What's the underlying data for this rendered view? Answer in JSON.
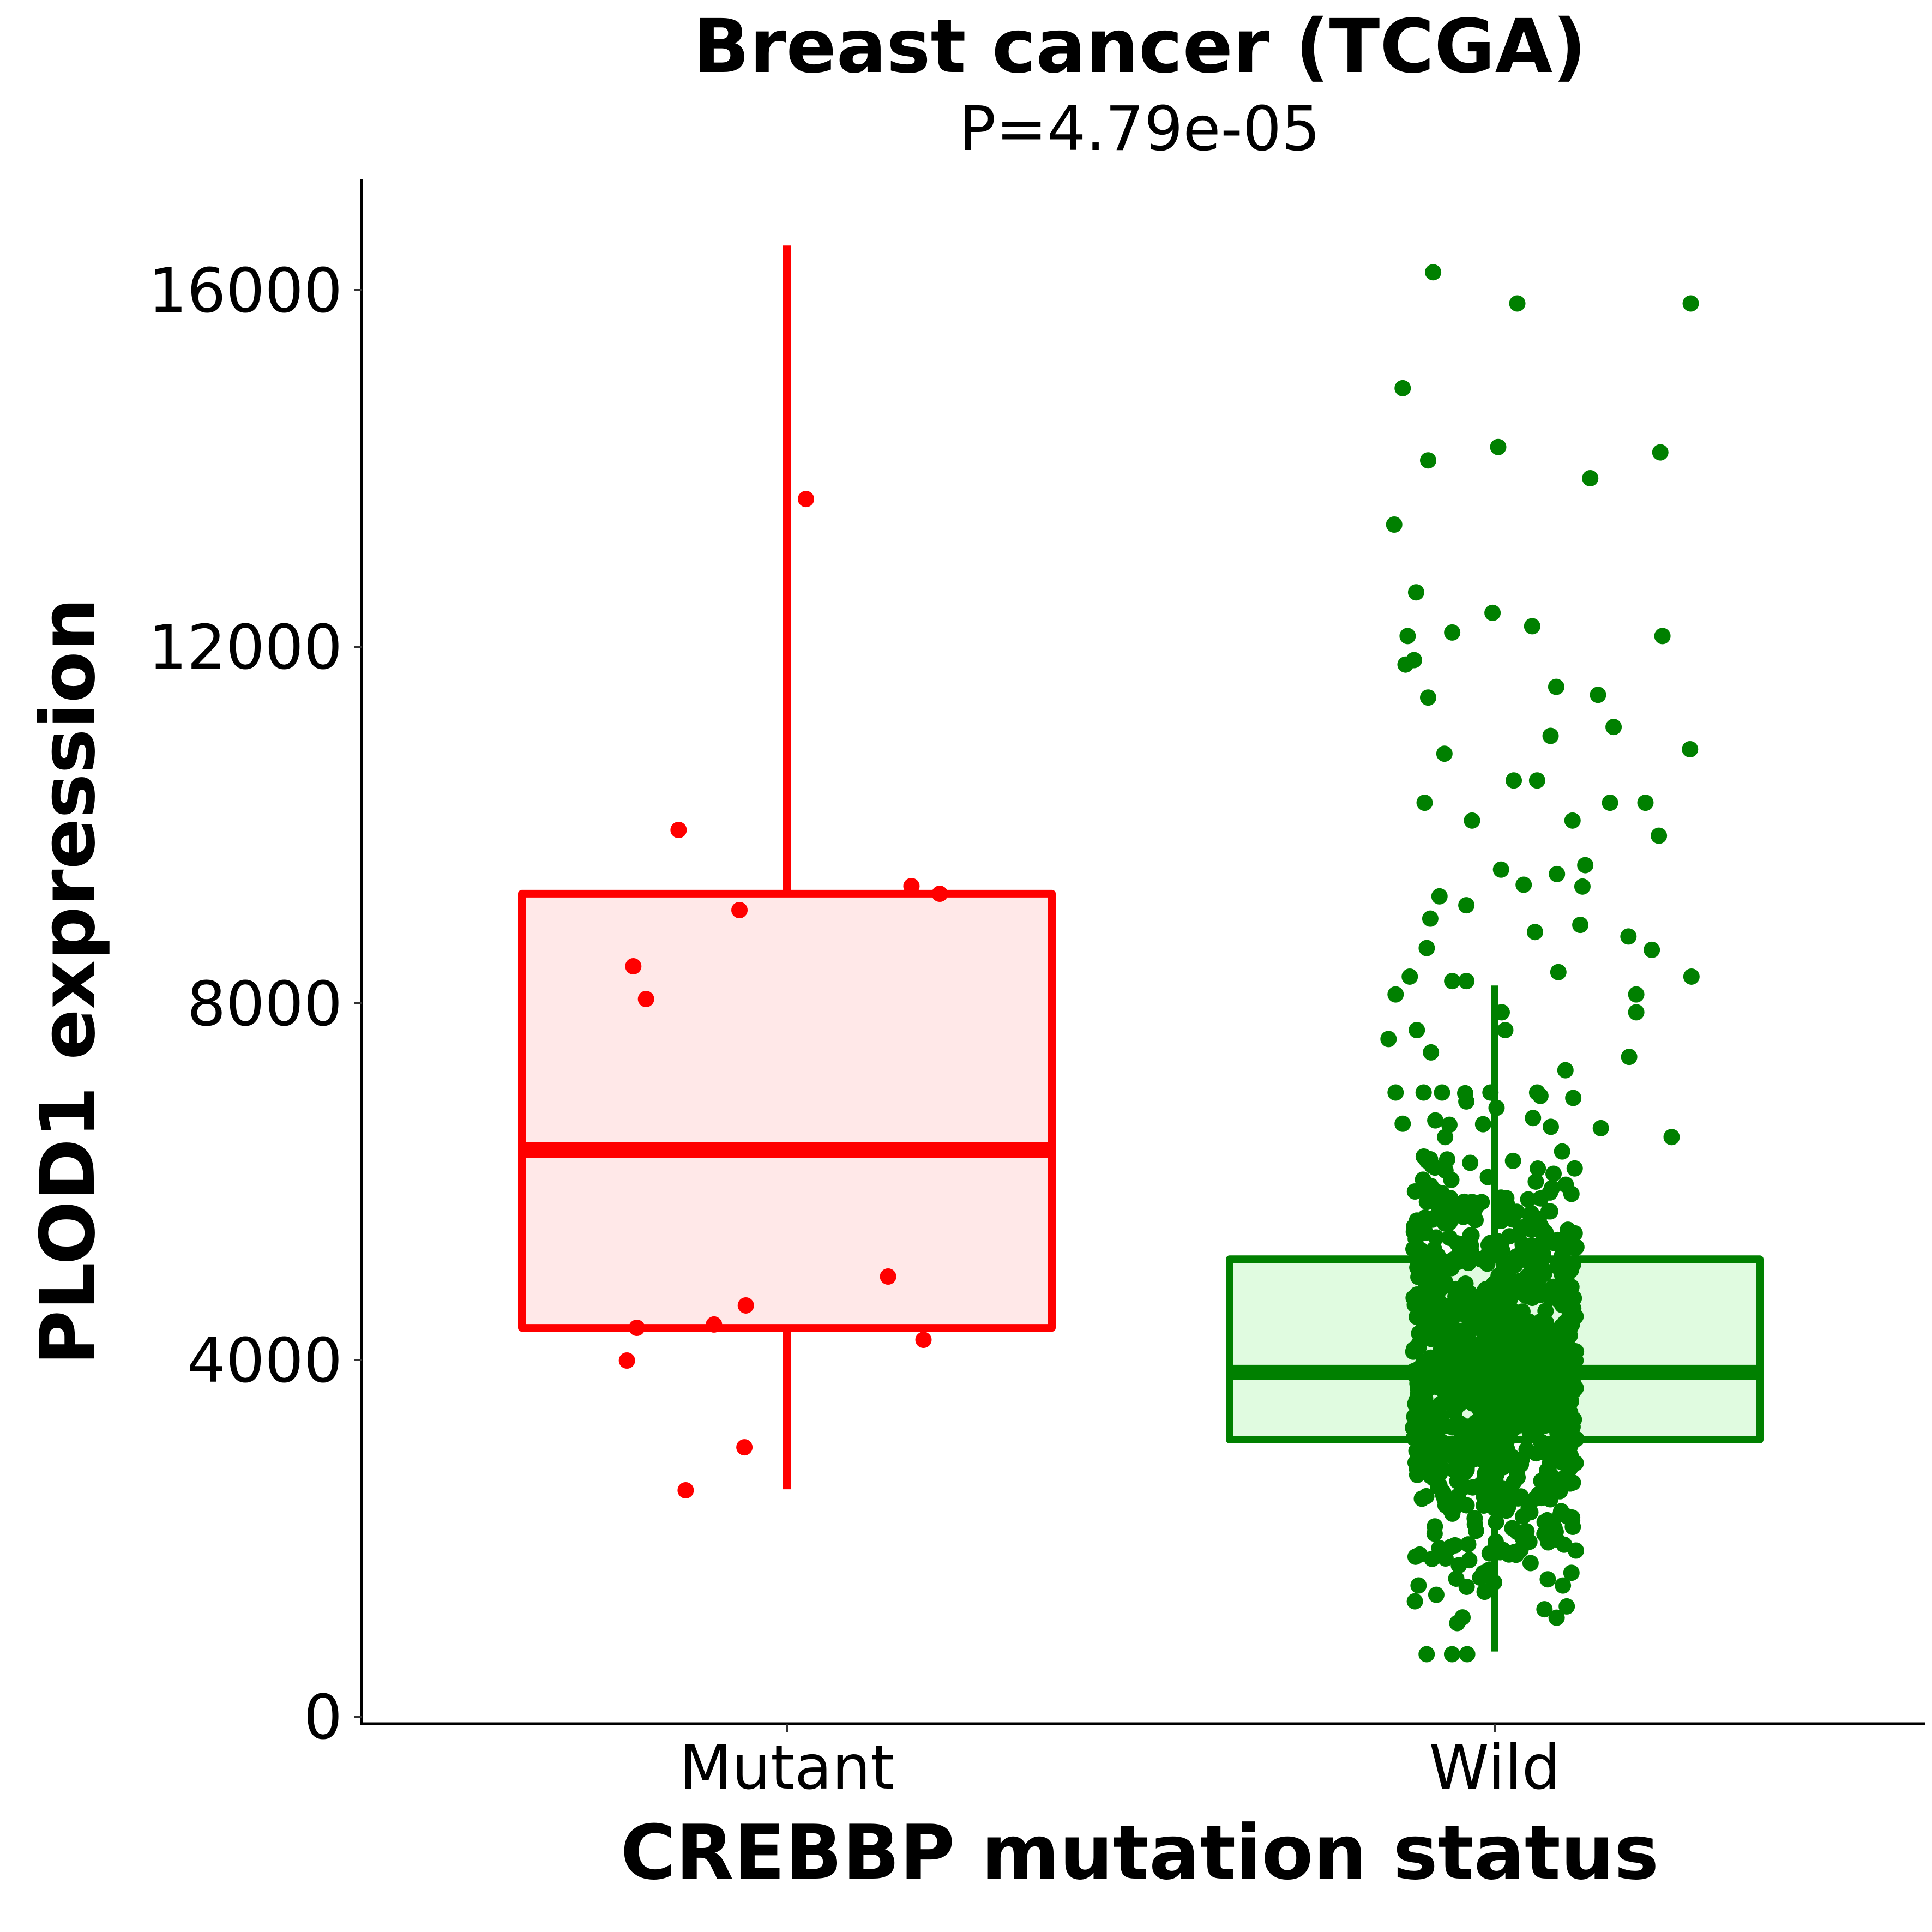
{
  "chart_data": {
    "type": "box",
    "title": "Breast cancer (TCGA)",
    "subtitle": "P=4.79e-05",
    "xlabel": "CREBBP mutation status",
    "ylabel": "PLOD1 expression",
    "ylim": [
      0,
      17300
    ],
    "yticks": [
      0,
      4000,
      8000,
      12000,
      16000
    ],
    "ytick_labels": [
      "0",
      "4000",
      "8000",
      "12000",
      "16000"
    ],
    "categories": [
      "Mutant",
      "Wild"
    ],
    "grid": false,
    "legend": "none",
    "groups": [
      {
        "name": "Mutant",
        "color": "#ff0000",
        "fill": "#ffe8e8",
        "box": {
          "whisker_low": 2550,
          "q1": 4360,
          "median": 6355,
          "q3": 9230,
          "whisker_high": 16500
        },
        "points": [
          [
            -0.153,
            9945
          ],
          [
            -0.067,
            9046
          ],
          [
            0.176,
            9315
          ],
          [
            0.216,
            9229
          ],
          [
            -0.217,
            8416
          ],
          [
            -0.199,
            8049
          ],
          [
            0.143,
            4936
          ],
          [
            -0.058,
            4612
          ],
          [
            -0.212,
            4361
          ],
          [
            -0.103,
            4398
          ],
          [
            0.193,
            4226
          ],
          [
            -0.226,
            3994
          ],
          [
            -0.06,
            3021
          ],
          [
            -0.143,
            2538
          ],
          [
            0.027,
            13657
          ]
        ]
      },
      {
        "name": "Wild",
        "color": "#008000",
        "fill": "#e0fbe0",
        "box": {
          "whisker_low": 730,
          "q1": 3107,
          "median": 3860,
          "q3": 5130,
          "whisker_high": 8200
        },
        "points": [
          [
            -0.087,
            16200
          ],
          [
            0.032,
            15850
          ],
          [
            0.277,
            15850
          ],
          [
            -0.13,
            14900
          ],
          [
            0.005,
            14240
          ],
          [
            -0.094,
            14090
          ],
          [
            0.234,
            14180
          ],
          [
            0.135,
            13890
          ],
          [
            -0.142,
            13370
          ],
          [
            -0.111,
            12610
          ],
          [
            -0.003,
            12380
          ],
          [
            0.237,
            12120
          ],
          [
            -0.123,
            12120
          ],
          [
            -0.06,
            12160
          ],
          [
            0.053,
            12230
          ],
          [
            -0.126,
            11800
          ],
          [
            -0.114,
            11850
          ],
          [
            -0.094,
            11430
          ],
          [
            0.087,
            11550
          ],
          [
            0.146,
            11460
          ],
          [
            -0.071,
            10800
          ],
          [
            0.079,
            11000
          ],
          [
            0.168,
            11100
          ],
          [
            0.276,
            10850
          ],
          [
            -0.099,
            10250
          ],
          [
            0.027,
            10500
          ],
          [
            0.06,
            10500
          ],
          [
            0.163,
            10250
          ],
          [
            -0.032,
            10050
          ],
          [
            0.11,
            10050
          ],
          [
            0.213,
            10250
          ],
          [
            0.232,
            9880
          ],
          [
            0.009,
            9500
          ],
          [
            0.128,
            9550
          ],
          [
            0.088,
            9450
          ],
          [
            -0.078,
            9200
          ],
          [
            0.041,
            9330
          ],
          [
            -0.04,
            9100
          ],
          [
            0.124,
            9310
          ],
          [
            -0.091,
            8950
          ],
          [
            0.121,
            8880
          ],
          [
            0.057,
            8800
          ],
          [
            -0.096,
            8620
          ],
          [
            0.189,
            8750
          ],
          [
            0.09,
            8350
          ],
          [
            0.222,
            8600
          ],
          [
            0.278,
            8300
          ],
          [
            -0.12,
            8300
          ],
          [
            -0.06,
            8250
          ],
          [
            -0.04,
            8250
          ],
          [
            0.2,
            8100
          ],
          [
            -0.14,
            8100
          ],
          [
            0.01,
            7900
          ],
          [
            0.2,
            7900
          ],
          [
            0.015,
            7700
          ],
          [
            -0.11,
            7700
          ],
          [
            -0.15,
            7600
          ],
          [
            -0.09,
            7450
          ],
          [
            0.19,
            7400
          ],
          [
            0.1,
            7250
          ],
          [
            -0.14,
            7000
          ],
          [
            0.06,
            7000
          ],
          [
            -0.04,
            6900
          ],
          [
            0.25,
            6500
          ],
          [
            -0.13,
            6650
          ],
          [
            0.15,
            6600
          ],
          [
            -0.07,
            6500
          ]
        ],
        "dense_cloud": {
          "count": 950,
          "jitter_half_width": 0.11,
          "center": 3900,
          "spread": 1150,
          "min": 700,
          "max": 7000
        }
      }
    ]
  }
}
